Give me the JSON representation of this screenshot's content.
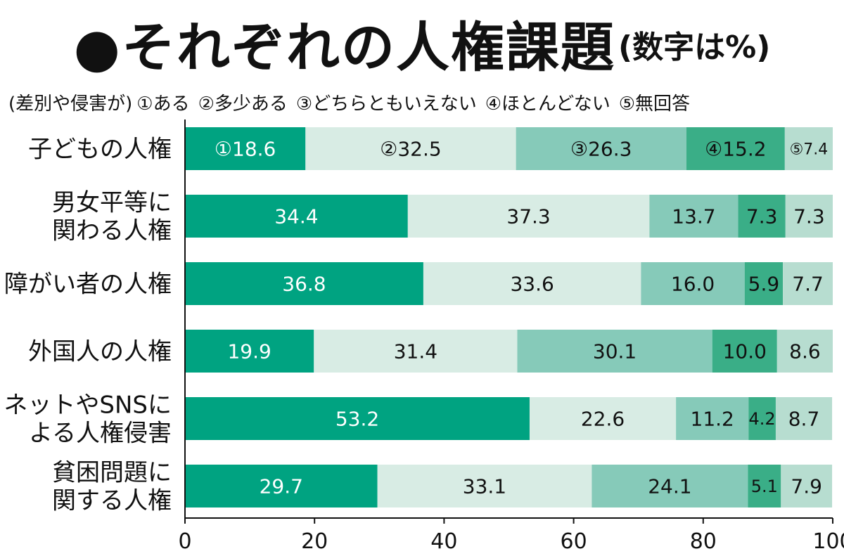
{
  "title": {
    "main": "●それぞれの人権課題",
    "unit": "(数字は%)"
  },
  "legend": {
    "prefix": "(差別や侵害が)",
    "items": [
      "①ある",
      "②多少ある",
      "③どちらともいえない",
      "④ほとんどない",
      "⑤無回答"
    ]
  },
  "colors": {
    "s1": "#00a381",
    "s2": "#d8ece4",
    "s3": "#86cab9",
    "s4": "#3aae87",
    "s5": "#b7ddd0",
    "axis": "#111111"
  },
  "chart_data": {
    "type": "bar",
    "orientation": "horizontal",
    "stacked": true,
    "title": "それぞれの人権課題",
    "unit": "%",
    "xlim": [
      0,
      100
    ],
    "xticks": [
      0,
      20,
      40,
      60,
      80,
      100
    ],
    "categories": [
      [
        "子どもの人権"
      ],
      [
        "男女平等に",
        "関わる人権"
      ],
      [
        "障がい者の人権"
      ],
      [
        "外国人の人権"
      ],
      [
        "ネットやSNSに",
        "よる人権侵害"
      ],
      [
        "貧困問題に",
        "関する人権"
      ]
    ],
    "series": [
      {
        "name": "①ある",
        "values": [
          18.6,
          34.4,
          36.8,
          19.9,
          53.2,
          29.7
        ]
      },
      {
        "name": "②多少ある",
        "values": [
          32.5,
          37.3,
          33.6,
          31.4,
          22.6,
          33.1
        ]
      },
      {
        "name": "③どちらともいえない",
        "values": [
          26.3,
          13.7,
          16.0,
          30.1,
          11.2,
          24.1
        ]
      },
      {
        "name": "④ほとんどない",
        "values": [
          15.2,
          7.3,
          5.9,
          10.0,
          4.2,
          5.1
        ]
      },
      {
        "name": "⑤無回答",
        "values": [
          7.4,
          7.3,
          7.7,
          8.6,
          8.7,
          7.9
        ]
      }
    ],
    "first_row_label_prefixes": [
      "①",
      "②",
      "③",
      "④",
      "⑤"
    ]
  }
}
